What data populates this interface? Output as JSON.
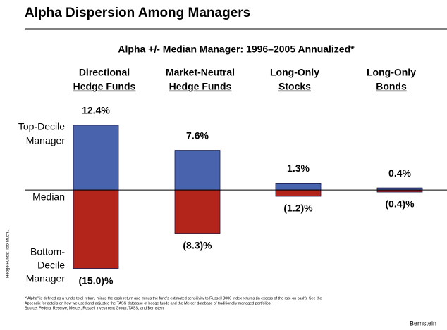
{
  "chart_data": {
    "type": "bar",
    "title": "Alpha Dispersion Among Managers",
    "subtitle": "Alpha +/- Median Manager: 1996–2005 Annualized*",
    "categories": [
      [
        "Directional",
        "Hedge Funds"
      ],
      [
        "Market-Neutral",
        "Hedge Funds"
      ],
      [
        "Long-Only",
        "Stocks"
      ],
      [
        "Long-Only",
        "Bonds"
      ]
    ],
    "category_colors": [
      "#000000",
      "#000000",
      "#d4a82a",
      "#d4a82a"
    ],
    "series": [
      {
        "color": "#4a63ad",
        "values": [
          12.4,
          7.6,
          1.3,
          0.4
        ],
        "value_labels": [
          "12.4%",
          "7.6%",
          "1.3%",
          "0.4%"
        ]
      },
      {
        "color": "#b3241a",
        "values": [
          -15.0,
          -8.3,
          -1.2,
          -0.4
        ],
        "value_labels": [
          "(15.0)%",
          "(8.3)%",
          "(1.2)%",
          "(0.4)%"
        ]
      }
    ],
    "row_labels": [
      [
        "Top-Decile",
        "Manager"
      ],
      [
        "Median"
      ],
      [
        "Bottom-",
        "Decile",
        "Manager"
      ]
    ],
    "ylim": [
      -16,
      14
    ],
    "side_note": "Hedge Funds: Too Much...",
    "footnote": [
      "*\"Alpha\" is defined as a fund's total return, minus the cash return and minus the fund's estimated sensitivity to Russell 3000 Index returns (in excess of the rate on cash). See the",
      "Appendix for details on how we used and adjusted the TASS database of hedge funds and the Mercer database of traditionally managed portfolios.",
      "Source: Federal Reserve, Mercer, Russell Investment Group, TASS, and Bernstein"
    ],
    "brand": "Bernstein"
  }
}
